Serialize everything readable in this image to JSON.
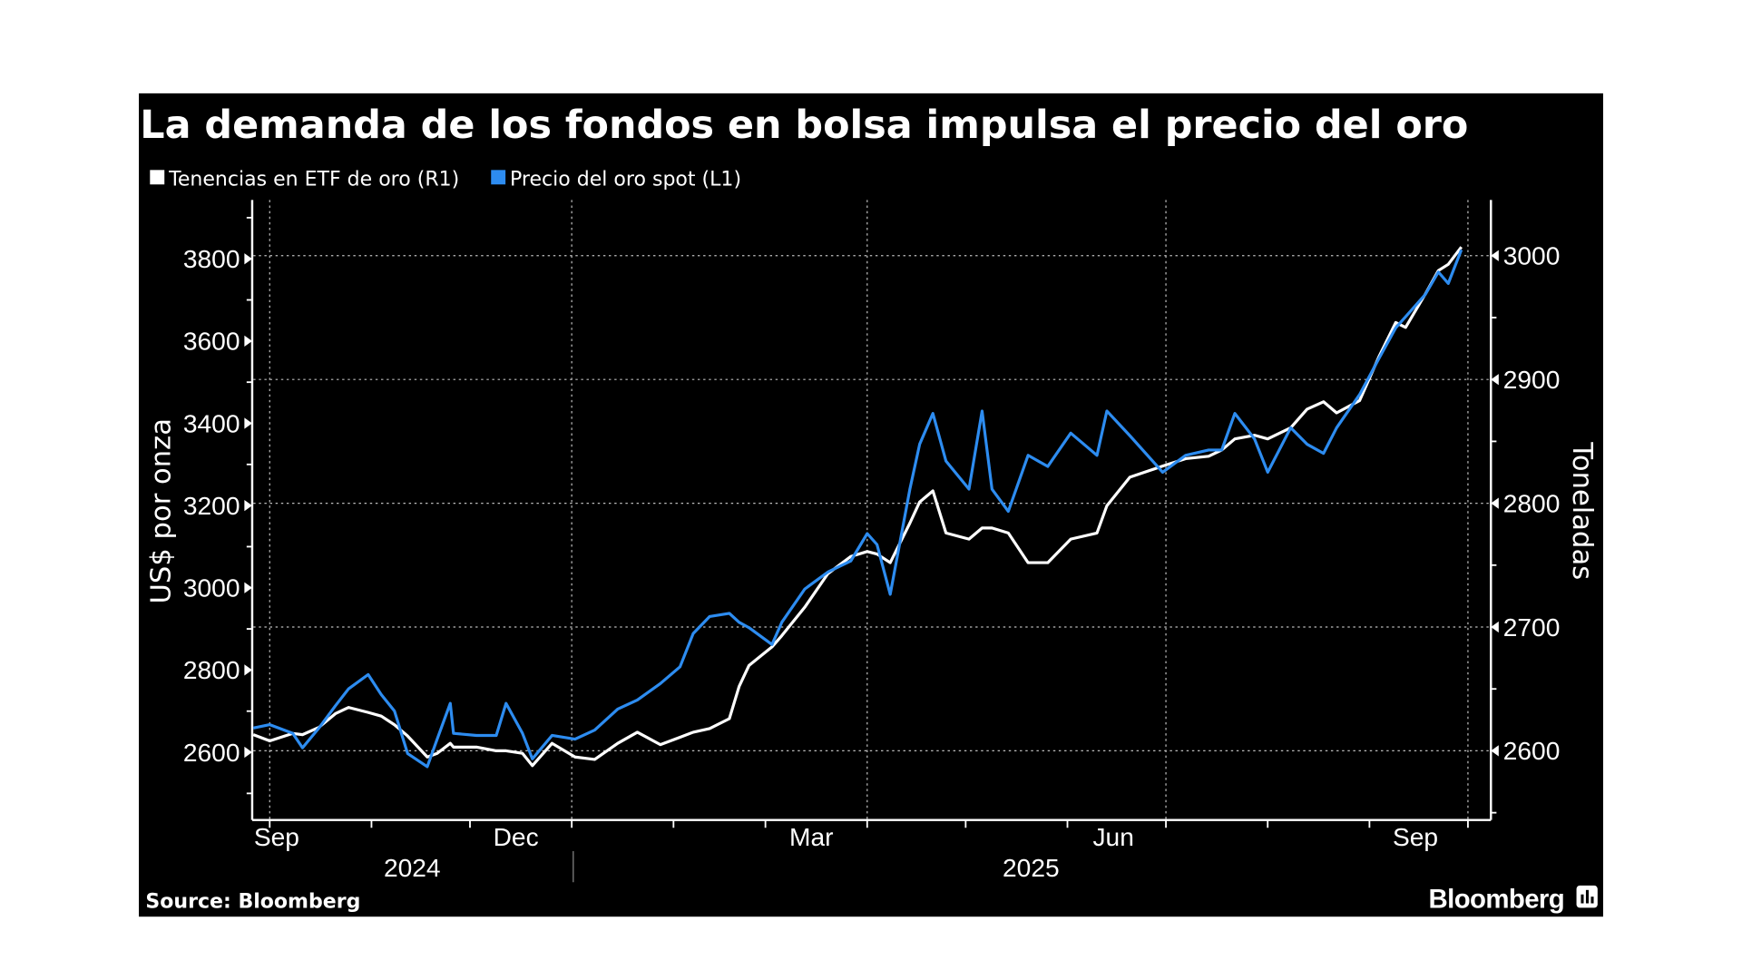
{
  "title": "La demanda de los fondos en bolsa impulsa el precio del oro",
  "source": "Source: Bloomberg",
  "brand": "Bloomberg",
  "colors": {
    "background": "#000000",
    "etf": "#ffffff",
    "gold": "#2d8cf0"
  },
  "chart_data": {
    "type": "line",
    "title": "La demanda de los fondos en bolsa impulsa el precio del oro",
    "legend_position": "top-left",
    "grid": true,
    "xlim": [
      "2024-09-26",
      "2025-10-08"
    ],
    "x_tick_labels": [
      {
        "label": "Sep",
        "date": "2024-09-15"
      },
      {
        "label": "Dec",
        "date": "2024-12-15"
      },
      {
        "label": "Mar",
        "date": "2025-03-15"
      },
      {
        "label": "Jun",
        "date": "2025-06-15"
      },
      {
        "label": "Sep",
        "date": "2025-09-15"
      }
    ],
    "x_year_labels": [
      {
        "label": "2024",
        "date": "2024-11-15"
      },
      {
        "label": "2025",
        "date": "2025-05-15"
      }
    ],
    "y_left": {
      "label": "US$ por onza",
      "ylim": [
        2438,
        3943
      ],
      "ticks": [
        2600,
        2800,
        3000,
        3200,
        3400,
        3600,
        3800
      ]
    },
    "y_right": {
      "label": "Toneladas",
      "ylim": [
        2545,
        3045
      ],
      "ticks": [
        2600,
        2700,
        2800,
        2900,
        3000
      ]
    },
    "series": [
      {
        "name": "Tenencias en ETF de oro (R1)",
        "axis": "right",
        "color": "#ffffff",
        "points": [
          [
            "2024-09-26",
            2613
          ],
          [
            "2024-10-01",
            2608
          ],
          [
            "2024-10-08",
            2614
          ],
          [
            "2024-10-11",
            2613
          ],
          [
            "2024-10-16",
            2619
          ],
          [
            "2024-10-21",
            2630
          ],
          [
            "2024-10-25",
            2635
          ],
          [
            "2024-10-31",
            2631
          ],
          [
            "2024-11-04",
            2628
          ],
          [
            "2024-11-08",
            2621
          ],
          [
            "2024-11-12",
            2612
          ],
          [
            "2024-11-18",
            2595
          ],
          [
            "2024-11-21",
            2598
          ],
          [
            "2024-11-25",
            2606
          ],
          [
            "2024-11-26",
            2603
          ],
          [
            "2024-12-03",
            2603
          ],
          [
            "2024-12-09",
            2600
          ],
          [
            "2024-12-12",
            2600
          ],
          [
            "2024-12-17",
            2598
          ],
          [
            "2024-12-20",
            2588
          ],
          [
            "2024-12-26",
            2606
          ],
          [
            "2025-01-02",
            2595
          ],
          [
            "2025-01-08",
            2593
          ],
          [
            "2025-01-15",
            2606
          ],
          [
            "2025-01-21",
            2615
          ],
          [
            "2025-01-28",
            2605
          ],
          [
            "2025-02-03",
            2611
          ],
          [
            "2025-02-07",
            2615
          ],
          [
            "2025-02-12",
            2618
          ],
          [
            "2025-02-18",
            2626
          ],
          [
            "2025-02-21",
            2652
          ],
          [
            "2025-02-24",
            2669
          ],
          [
            "2025-03-03",
            2684
          ],
          [
            "2025-03-06",
            2693
          ],
          [
            "2025-03-13",
            2716
          ],
          [
            "2025-03-20",
            2743
          ],
          [
            "2025-03-27",
            2757
          ],
          [
            "2025-04-01",
            2761
          ],
          [
            "2025-04-04",
            2759
          ],
          [
            "2025-04-08",
            2752
          ],
          [
            "2025-04-14",
            2784
          ],
          [
            "2025-04-17",
            2801
          ],
          [
            "2025-04-21",
            2810
          ],
          [
            "2025-04-25",
            2776
          ],
          [
            "2025-05-02",
            2771
          ],
          [
            "2025-05-06",
            2780
          ],
          [
            "2025-05-09",
            2780
          ],
          [
            "2025-05-14",
            2776
          ],
          [
            "2025-05-20",
            2752
          ],
          [
            "2025-05-26",
            2752
          ],
          [
            "2025-06-02",
            2771
          ],
          [
            "2025-06-10",
            2776
          ],
          [
            "2025-06-13",
            2798
          ],
          [
            "2025-06-20",
            2821
          ],
          [
            "2025-06-30",
            2830
          ],
          [
            "2025-07-07",
            2836
          ],
          [
            "2025-07-14",
            2838
          ],
          [
            "2025-07-18",
            2843
          ],
          [
            "2025-07-22",
            2852
          ],
          [
            "2025-07-28",
            2855
          ],
          [
            "2025-08-01",
            2852
          ],
          [
            "2025-08-08",
            2861
          ],
          [
            "2025-08-13",
            2876
          ],
          [
            "2025-08-18",
            2882
          ],
          [
            "2025-08-22",
            2873
          ],
          [
            "2025-08-29",
            2883
          ],
          [
            "2025-09-04",
            2919
          ],
          [
            "2025-09-09",
            2946
          ],
          [
            "2025-09-12",
            2942
          ],
          [
            "2025-09-18",
            2969
          ],
          [
            "2025-09-22",
            2988
          ],
          [
            "2025-09-25",
            2993
          ],
          [
            "2025-09-29",
            3007
          ]
        ]
      },
      {
        "name": "Precio del oro spot (L1)",
        "axis": "left",
        "color": "#2d8cf0",
        "points": [
          [
            "2024-09-26",
            2659
          ],
          [
            "2024-10-01",
            2667
          ],
          [
            "2024-10-08",
            2646
          ],
          [
            "2024-10-11",
            2611
          ],
          [
            "2024-10-16",
            2659
          ],
          [
            "2024-10-21",
            2713
          ],
          [
            "2024-10-25",
            2754
          ],
          [
            "2024-10-31",
            2789
          ],
          [
            "2024-11-04",
            2740
          ],
          [
            "2024-11-08",
            2700
          ],
          [
            "2024-11-12",
            2597
          ],
          [
            "2024-11-18",
            2565
          ],
          [
            "2024-11-21",
            2632
          ],
          [
            "2024-11-25",
            2719
          ],
          [
            "2024-11-26",
            2646
          ],
          [
            "2024-12-03",
            2641
          ],
          [
            "2024-12-09",
            2641
          ],
          [
            "2024-12-12",
            2719
          ],
          [
            "2024-12-17",
            2646
          ],
          [
            "2024-12-20",
            2584
          ],
          [
            "2024-12-26",
            2641
          ],
          [
            "2025-01-02",
            2632
          ],
          [
            "2025-01-08",
            2654
          ],
          [
            "2025-01-15",
            2705
          ],
          [
            "2025-01-21",
            2727
          ],
          [
            "2025-01-28",
            2767
          ],
          [
            "2025-02-03",
            2808
          ],
          [
            "2025-02-07",
            2889
          ],
          [
            "2025-02-12",
            2930
          ],
          [
            "2025-02-18",
            2938
          ],
          [
            "2025-02-21",
            2916
          ],
          [
            "2025-02-24",
            2903
          ],
          [
            "2025-03-03",
            2862
          ],
          [
            "2025-03-06",
            2916
          ],
          [
            "2025-03-13",
            2997
          ],
          [
            "2025-03-20",
            3038
          ],
          [
            "2025-03-27",
            3065
          ],
          [
            "2025-04-01",
            3132
          ],
          [
            "2025-04-04",
            3105
          ],
          [
            "2025-04-08",
            2984
          ],
          [
            "2025-04-14",
            3240
          ],
          [
            "2025-04-17",
            3349
          ],
          [
            "2025-04-21",
            3424
          ],
          [
            "2025-04-25",
            3308
          ],
          [
            "2025-05-02",
            3240
          ],
          [
            "2025-05-06",
            3430
          ],
          [
            "2025-05-09",
            3240
          ],
          [
            "2025-05-14",
            3186
          ],
          [
            "2025-05-20",
            3322
          ],
          [
            "2025-05-26",
            3295
          ],
          [
            "2025-06-02",
            3376
          ],
          [
            "2025-06-10",
            3322
          ],
          [
            "2025-06-13",
            3430
          ],
          [
            "2025-06-20",
            3370
          ],
          [
            "2025-06-30",
            3281
          ],
          [
            "2025-07-07",
            3322
          ],
          [
            "2025-07-14",
            3335
          ],
          [
            "2025-07-18",
            3335
          ],
          [
            "2025-07-22",
            3424
          ],
          [
            "2025-07-28",
            3362
          ],
          [
            "2025-08-01",
            3281
          ],
          [
            "2025-08-08",
            3389
          ],
          [
            "2025-08-13",
            3349
          ],
          [
            "2025-08-18",
            3327
          ],
          [
            "2025-08-22",
            3389
          ],
          [
            "2025-08-29",
            3470
          ],
          [
            "2025-09-04",
            3559
          ],
          [
            "2025-09-09",
            3632
          ],
          [
            "2025-09-12",
            3659
          ],
          [
            "2025-09-18",
            3713
          ],
          [
            "2025-09-22",
            3768
          ],
          [
            "2025-09-25",
            3740
          ],
          [
            "2025-09-29",
            3822
          ]
        ]
      }
    ]
  }
}
